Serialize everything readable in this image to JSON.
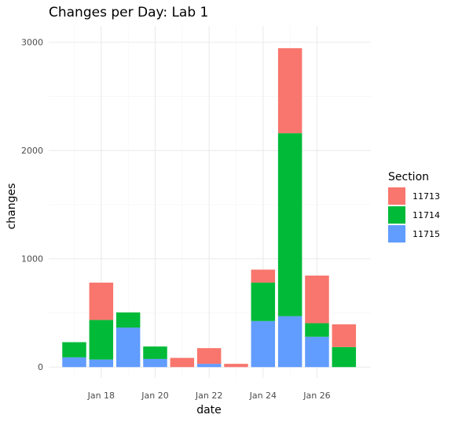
{
  "chart_data": {
    "type": "bar",
    "stacked": true,
    "title": "Changes per Day: Lab 1",
    "xlabel": "date",
    "ylabel": "changes",
    "ylim": [
      -100,
      3150
    ],
    "y_ticks": [
      0,
      1000,
      2000,
      3000
    ],
    "x_tick_labels": [
      "Jan 18",
      "Jan 20",
      "Jan 22",
      "Jan 24",
      "Jan 26"
    ],
    "grid": true,
    "legend_position": "right",
    "legend_title": "Section",
    "categories": [
      "Jan 17",
      "Jan 18",
      "Jan 19",
      "Jan 20",
      "Jan 21",
      "Jan 22",
      "Jan 23",
      "Jan 24",
      "Jan 25",
      "Jan 26",
      "Jan 27"
    ],
    "series": [
      {
        "name": "11713",
        "color": "#F8766D",
        "values": [
          0,
          345,
          0,
          0,
          85,
          145,
          30,
          120,
          785,
          440,
          210
        ]
      },
      {
        "name": "11714",
        "color": "#00BA38",
        "values": [
          140,
          365,
          140,
          115,
          0,
          0,
          0,
          355,
          1690,
          125,
          185
        ]
      },
      {
        "name": "11715",
        "color": "#619CFF",
        "values": [
          90,
          70,
          365,
          75,
          0,
          30,
          0,
          425,
          470,
          280,
          0
        ]
      }
    ]
  }
}
